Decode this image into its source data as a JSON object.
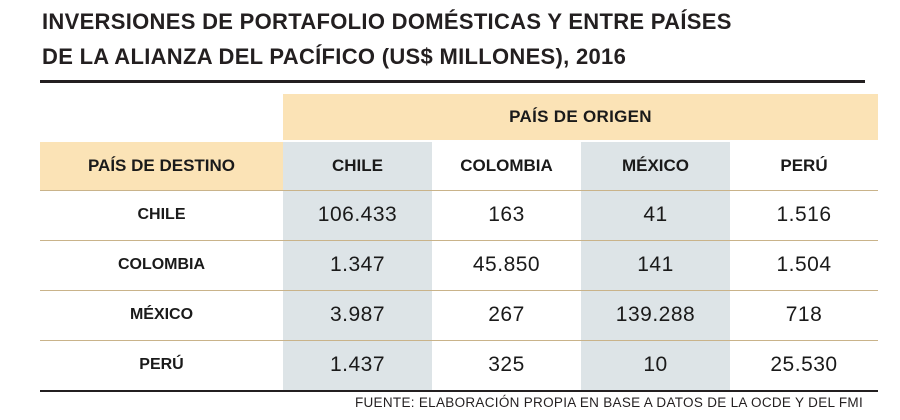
{
  "title_line1": "INVERSIONES DE PORTAFOLIO DOMÉSTICAS Y ENTRE PAÍSES",
  "title_line2": "DE LA ALIANZA DEL PACÍFICO (US$ MILLONES), 2016",
  "source": "FUENTE: ELABORACIÓN PROPIA EN BASE A DATOS DE LA OCDE Y DEL FMI",
  "colors": {
    "header_band": "#fbe3b6",
    "shaded_column": "#dde4e7",
    "rule": "#231f20"
  },
  "chart_data": {
    "type": "table",
    "title": "INVERSIONES DE PORTAFOLIO DOMÉSTICAS Y ENTRE PAÍSES DE LA ALIANZA DEL PACÍFICO (US$ MILLONES), 2016",
    "column_group_label": "PAÍS DE ORIGEN",
    "row_header_label": "PAÍS DE DESTINO",
    "columns": [
      "CHILE",
      "COLOMBIA",
      "MÉXICO",
      "PERÚ"
    ],
    "rows": [
      {
        "label": "CHILE",
        "values": [
          "106.433",
          "163",
          "41",
          "1.516"
        ]
      },
      {
        "label": "COLOMBIA",
        "values": [
          "1.347",
          "45.850",
          "141",
          "1.504"
        ]
      },
      {
        "label": "MÉXICO",
        "values": [
          "3.987",
          "267",
          "139.288",
          "718"
        ]
      },
      {
        "label": "PERÚ",
        "values": [
          "1.437",
          "325",
          "10",
          "25.530"
        ]
      }
    ]
  }
}
